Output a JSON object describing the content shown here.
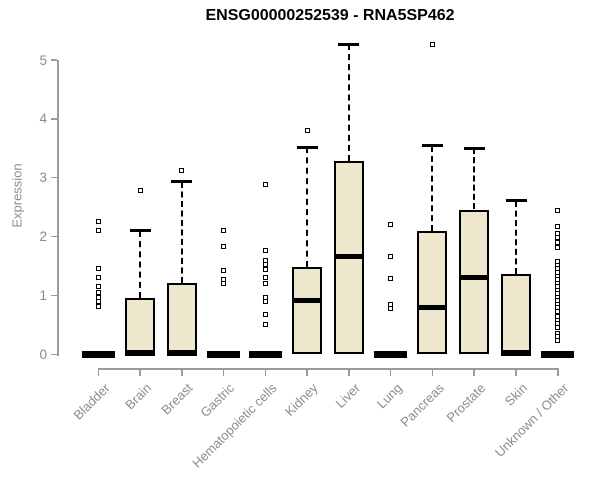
{
  "title": "ENSG00000252539 - RNA5SP462",
  "colors": {
    "box_fill": "#EDE7CE",
    "box_border": "#000000",
    "median": "#000000",
    "whisker": "#000000",
    "axis_line": "#9B9B9B",
    "axis_text": "#8C8C8C",
    "title_text": "#000000",
    "outlier_fill": "#FFFFFF",
    "background": "#FFFFFF"
  },
  "chart_data": {
    "type": "boxplot",
    "title": "ENSG00000252539 - RNA5SP462",
    "xlabel": "",
    "ylabel": "Expression",
    "ylim": [
      0,
      5.4
    ],
    "yticks": [
      0,
      1,
      2,
      3,
      4,
      5
    ],
    "grid": false,
    "legend": false,
    "categories": [
      "Bladder",
      "Brain",
      "Breast",
      "Gastric",
      "Hematopoietic cells",
      "Kidney",
      "Liver",
      "Lung",
      "Pancreas",
      "Prostate",
      "Skin",
      "Unknown / Other"
    ],
    "boxes": [
      {
        "category": "Bladder",
        "collapsed": true,
        "q1": 0,
        "median": 0.02,
        "q3": 0.02,
        "whisker_low": 0,
        "whisker_high": 0.02,
        "outliers": [
          2.25,
          2.1,
          1.45,
          1.3,
          1.15,
          1.05,
          0.97,
          0.9,
          0.82
        ]
      },
      {
        "category": "Brain",
        "collapsed": false,
        "q1": 0,
        "median": 0.03,
        "q3": 0.95,
        "whisker_low": 0,
        "whisker_high": 2.1,
        "outliers": [
          2.78
        ]
      },
      {
        "category": "Breast",
        "collapsed": false,
        "q1": 0,
        "median": 0.03,
        "q3": 1.21,
        "whisker_low": 0,
        "whisker_high": 2.93,
        "outliers": [
          3.13
        ]
      },
      {
        "category": "Gastric",
        "collapsed": true,
        "q1": 0,
        "median": 0.02,
        "q3": 0.02,
        "whisker_low": 0,
        "whisker_high": 0.02,
        "outliers": [
          2.1,
          1.83,
          1.42,
          1.27,
          1.2
        ]
      },
      {
        "category": "Hematopoietic cells",
        "collapsed": true,
        "q1": 0,
        "median": 0.02,
        "q3": 0.02,
        "whisker_low": 0,
        "whisker_high": 0.02,
        "outliers": [
          2.88,
          1.77,
          1.6,
          1.52,
          1.44,
          1.3,
          1.2,
          0.97,
          0.9,
          0.67,
          0.5
        ]
      },
      {
        "category": "Kidney",
        "collapsed": false,
        "q1": 0,
        "median": 0.92,
        "q3": 1.49,
        "whisker_low": 0,
        "whisker_high": 3.52,
        "outliers": [
          3.8
        ]
      },
      {
        "category": "Liver",
        "collapsed": false,
        "q1": 0,
        "median": 1.67,
        "q3": 3.28,
        "whisker_low": 0,
        "whisker_high": 5.27,
        "outliers": []
      },
      {
        "category": "Lung",
        "collapsed": true,
        "q1": 0,
        "median": 0.02,
        "q3": 0.02,
        "whisker_low": 0,
        "whisker_high": 0.02,
        "outliers": [
          2.21,
          1.67,
          1.28,
          0.84,
          0.78
        ]
      },
      {
        "category": "Pancreas",
        "collapsed": false,
        "q1": 0,
        "median": 0.8,
        "q3": 2.09,
        "whisker_low": 0,
        "whisker_high": 3.54,
        "outliers": [
          5.27
        ]
      },
      {
        "category": "Prostate",
        "collapsed": false,
        "q1": 0,
        "median": 1.3,
        "q3": 2.46,
        "whisker_low": 0,
        "whisker_high": 3.5,
        "outliers": []
      },
      {
        "category": "Skin",
        "collapsed": false,
        "q1": 0,
        "median": 0.03,
        "q3": 1.36,
        "whisker_low": 0,
        "whisker_high": 2.61,
        "outliers": []
      },
      {
        "category": "Unknown / Other",
        "collapsed": true,
        "q1": 0,
        "median": 0.02,
        "q3": 0.02,
        "whisker_low": 0,
        "whisker_high": 0.02,
        "outliers": [
          2.45,
          2.17,
          2.06,
          1.98,
          1.9,
          1.82,
          1.57,
          1.51,
          1.45,
          1.39,
          1.33,
          1.27,
          1.21,
          1.15,
          1.09,
          1.03,
          0.97,
          0.91,
          0.85,
          0.79,
          0.73,
          0.64,
          0.58,
          0.52,
          0.46,
          0.36,
          0.3,
          0.24
        ]
      }
    ]
  }
}
